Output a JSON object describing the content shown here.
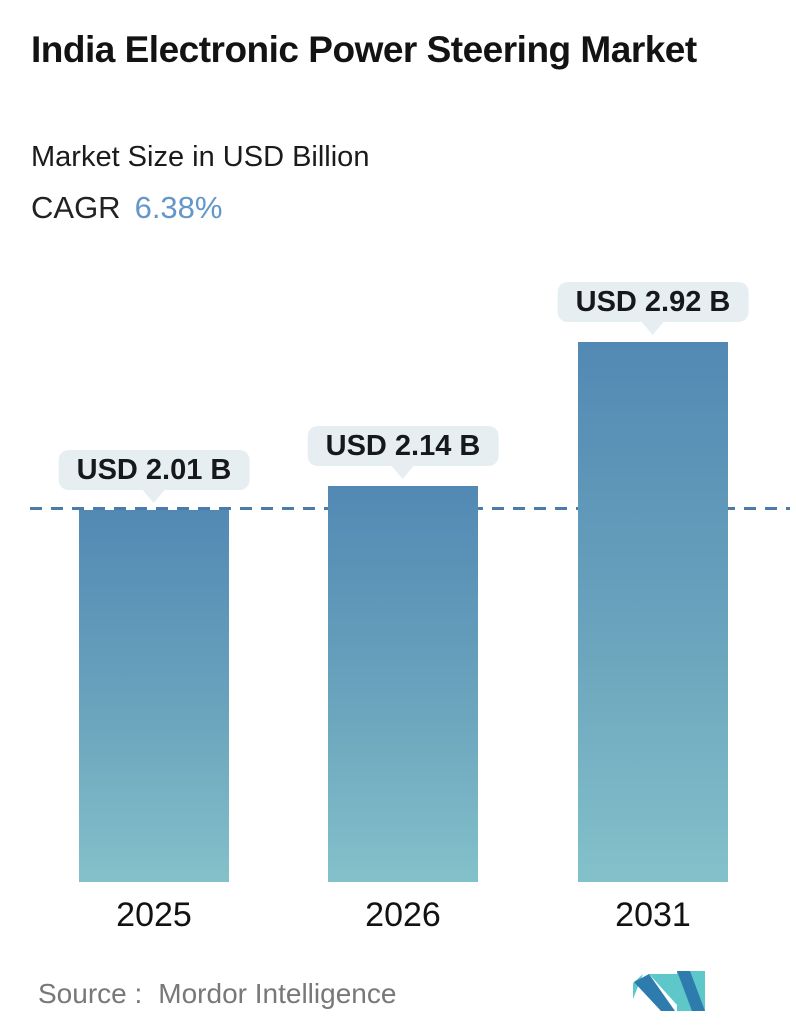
{
  "header": {
    "title": "India Electronic Power Steering Market",
    "subtitle": "Market Size in USD Billion",
    "cagr_label": "CAGR",
    "cagr_value": "6.38%"
  },
  "chart_data": {
    "type": "bar",
    "categories": [
      "2025",
      "2026",
      "2031"
    ],
    "values": [
      2.01,
      2.14,
      2.92
    ],
    "value_labels": [
      "USD 2.01 B",
      "USD 2.14 B",
      "USD 2.92 B"
    ],
    "title": "India Electronic Power Steering Market",
    "subtitle": "Market Size in USD Billion",
    "cagr": "6.38%",
    "unit": "USD Billion",
    "ylim": [
      0,
      3.2
    ],
    "grid": false,
    "reference_line": {
      "value": 2.01,
      "style": "dashed",
      "color": "#4b7ca9"
    },
    "colors": {
      "bar_gradient_top": "#5289b4",
      "bar_gradient_bottom": "#83c1ca",
      "callout_background": "#e7eef1",
      "accent_blue": "#6497c8"
    }
  },
  "footer": {
    "source_label": "Source :",
    "source_value": "Mordor Intelligence",
    "logo_name": "mordor-intelligence-logo",
    "logo_colors": {
      "blue": "#2e7cad",
      "teal": "#5ec7c9"
    }
  }
}
